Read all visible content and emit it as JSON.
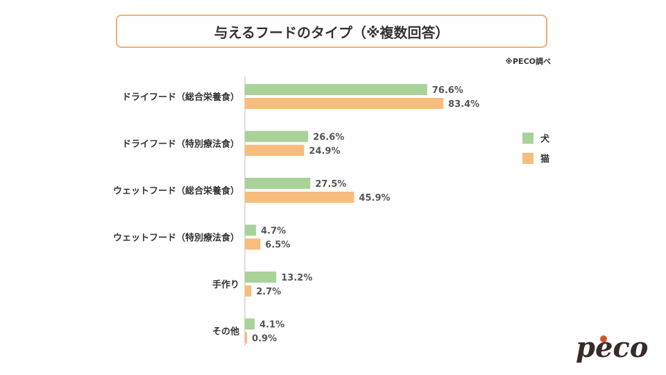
{
  "title": "与えるフードのタイプ（※複数回答）",
  "source": "※PECO調べ",
  "colors": {
    "dog": "#a8d29a",
    "cat": "#f8bc7c",
    "frame": "#f0b070",
    "logo": "#3a2a2a",
    "logo_accent": "#d9502a"
  },
  "logo_text": "peco",
  "chart_data": {
    "type": "bar",
    "orientation": "horizontal",
    "title": "与えるフードのタイプ（※複数回答）",
    "categories": [
      "ドライフード（総合栄養食）",
      "ドライフード（特別療法食）",
      "ウェットフード（総合栄養食）",
      "ウェットフード（特別療法食）",
      "手作り",
      "その他"
    ],
    "series": [
      {
        "name": "犬",
        "values": [
          76.6,
          26.6,
          27.5,
          4.7,
          13.2,
          4.1
        ]
      },
      {
        "name": "猫",
        "values": [
          83.4,
          24.9,
          45.9,
          6.5,
          2.7,
          0.9
        ]
      }
    ],
    "value_labels": {
      "犬": [
        "76.6%",
        "26.6%",
        "27.5%",
        "4.7%",
        "13.2%",
        "4.1%"
      ],
      "猫": [
        "83.4%",
        "24.9%",
        "45.9%",
        "6.5%",
        "2.7%",
        "0.9%"
      ]
    },
    "unit": "%",
    "xlim": [
      0,
      100
    ],
    "legend": "right"
  }
}
